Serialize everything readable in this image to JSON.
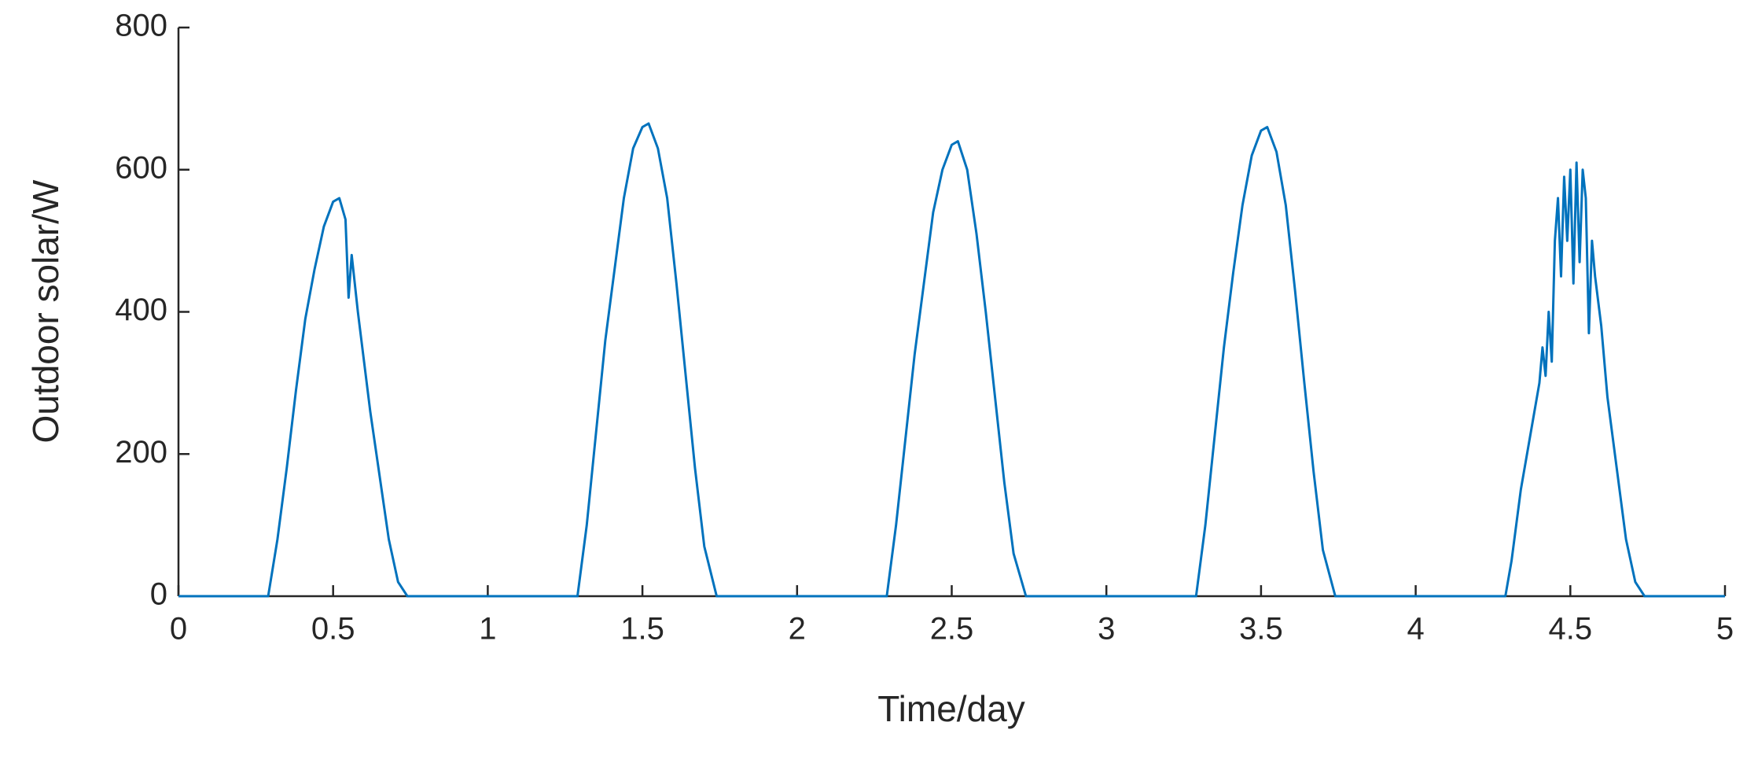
{
  "chart_data": {
    "type": "line",
    "xlabel": "Time/day",
    "ylabel": "Outdoor solar/W",
    "xlim": [
      0,
      5
    ],
    "xticks": [
      0,
      0.5,
      1,
      1.5,
      2,
      2.5,
      3,
      3.5,
      4,
      4.5,
      5
    ],
    "ylim": [
      0,
      800
    ],
    "yticks": [
      0,
      200,
      400,
      600,
      800
    ],
    "grid": false,
    "series": [
      {
        "name": "Outdoor solar",
        "color": "#0072bd",
        "x": [
          0,
          0.29,
          0.32,
          0.35,
          0.38,
          0.41,
          0.44,
          0.47,
          0.5,
          0.52,
          0.54,
          0.55,
          0.56,
          0.58,
          0.6,
          0.62,
          0.65,
          0.68,
          0.71,
          0.74,
          1.29,
          1.32,
          1.35,
          1.38,
          1.41,
          1.44,
          1.47,
          1.5,
          1.52,
          1.55,
          1.58,
          1.61,
          1.64,
          1.67,
          1.7,
          1.74,
          2.29,
          2.32,
          2.35,
          2.38,
          2.41,
          2.44,
          2.47,
          2.5,
          2.52,
          2.55,
          2.58,
          2.61,
          2.64,
          2.67,
          2.7,
          2.74,
          3.29,
          3.32,
          3.35,
          3.38,
          3.41,
          3.44,
          3.47,
          3.5,
          3.52,
          3.55,
          3.58,
          3.61,
          3.64,
          3.67,
          3.7,
          3.74,
          4.29,
          4.31,
          4.34,
          4.36,
          4.38,
          4.4,
          4.41,
          4.42,
          4.43,
          4.44,
          4.45,
          4.46,
          4.47,
          4.48,
          4.49,
          4.5,
          4.51,
          4.52,
          4.53,
          4.54,
          4.55,
          4.56,
          4.57,
          4.58,
          4.6,
          4.62,
          4.65,
          4.68,
          4.71,
          4.74,
          5
        ],
        "values": [
          0,
          0,
          80,
          180,
          290,
          390,
          460,
          520,
          555,
          560,
          530,
          420,
          480,
          400,
          330,
          260,
          170,
          80,
          20,
          0,
          0,
          100,
          230,
          360,
          460,
          560,
          630,
          660,
          665,
          630,
          560,
          440,
          310,
          180,
          70,
          0,
          0,
          100,
          220,
          340,
          440,
          540,
          600,
          635,
          640,
          600,
          510,
          400,
          280,
          160,
          60,
          0,
          0,
          100,
          225,
          350,
          455,
          550,
          620,
          655,
          660,
          625,
          550,
          430,
          300,
          175,
          65,
          0,
          0,
          50,
          150,
          200,
          250,
          300,
          350,
          310,
          400,
          330,
          500,
          560,
          450,
          590,
          500,
          600,
          440,
          610,
          470,
          600,
          560,
          370,
          500,
          450,
          380,
          280,
          180,
          80,
          20,
          0,
          0
        ]
      }
    ]
  }
}
